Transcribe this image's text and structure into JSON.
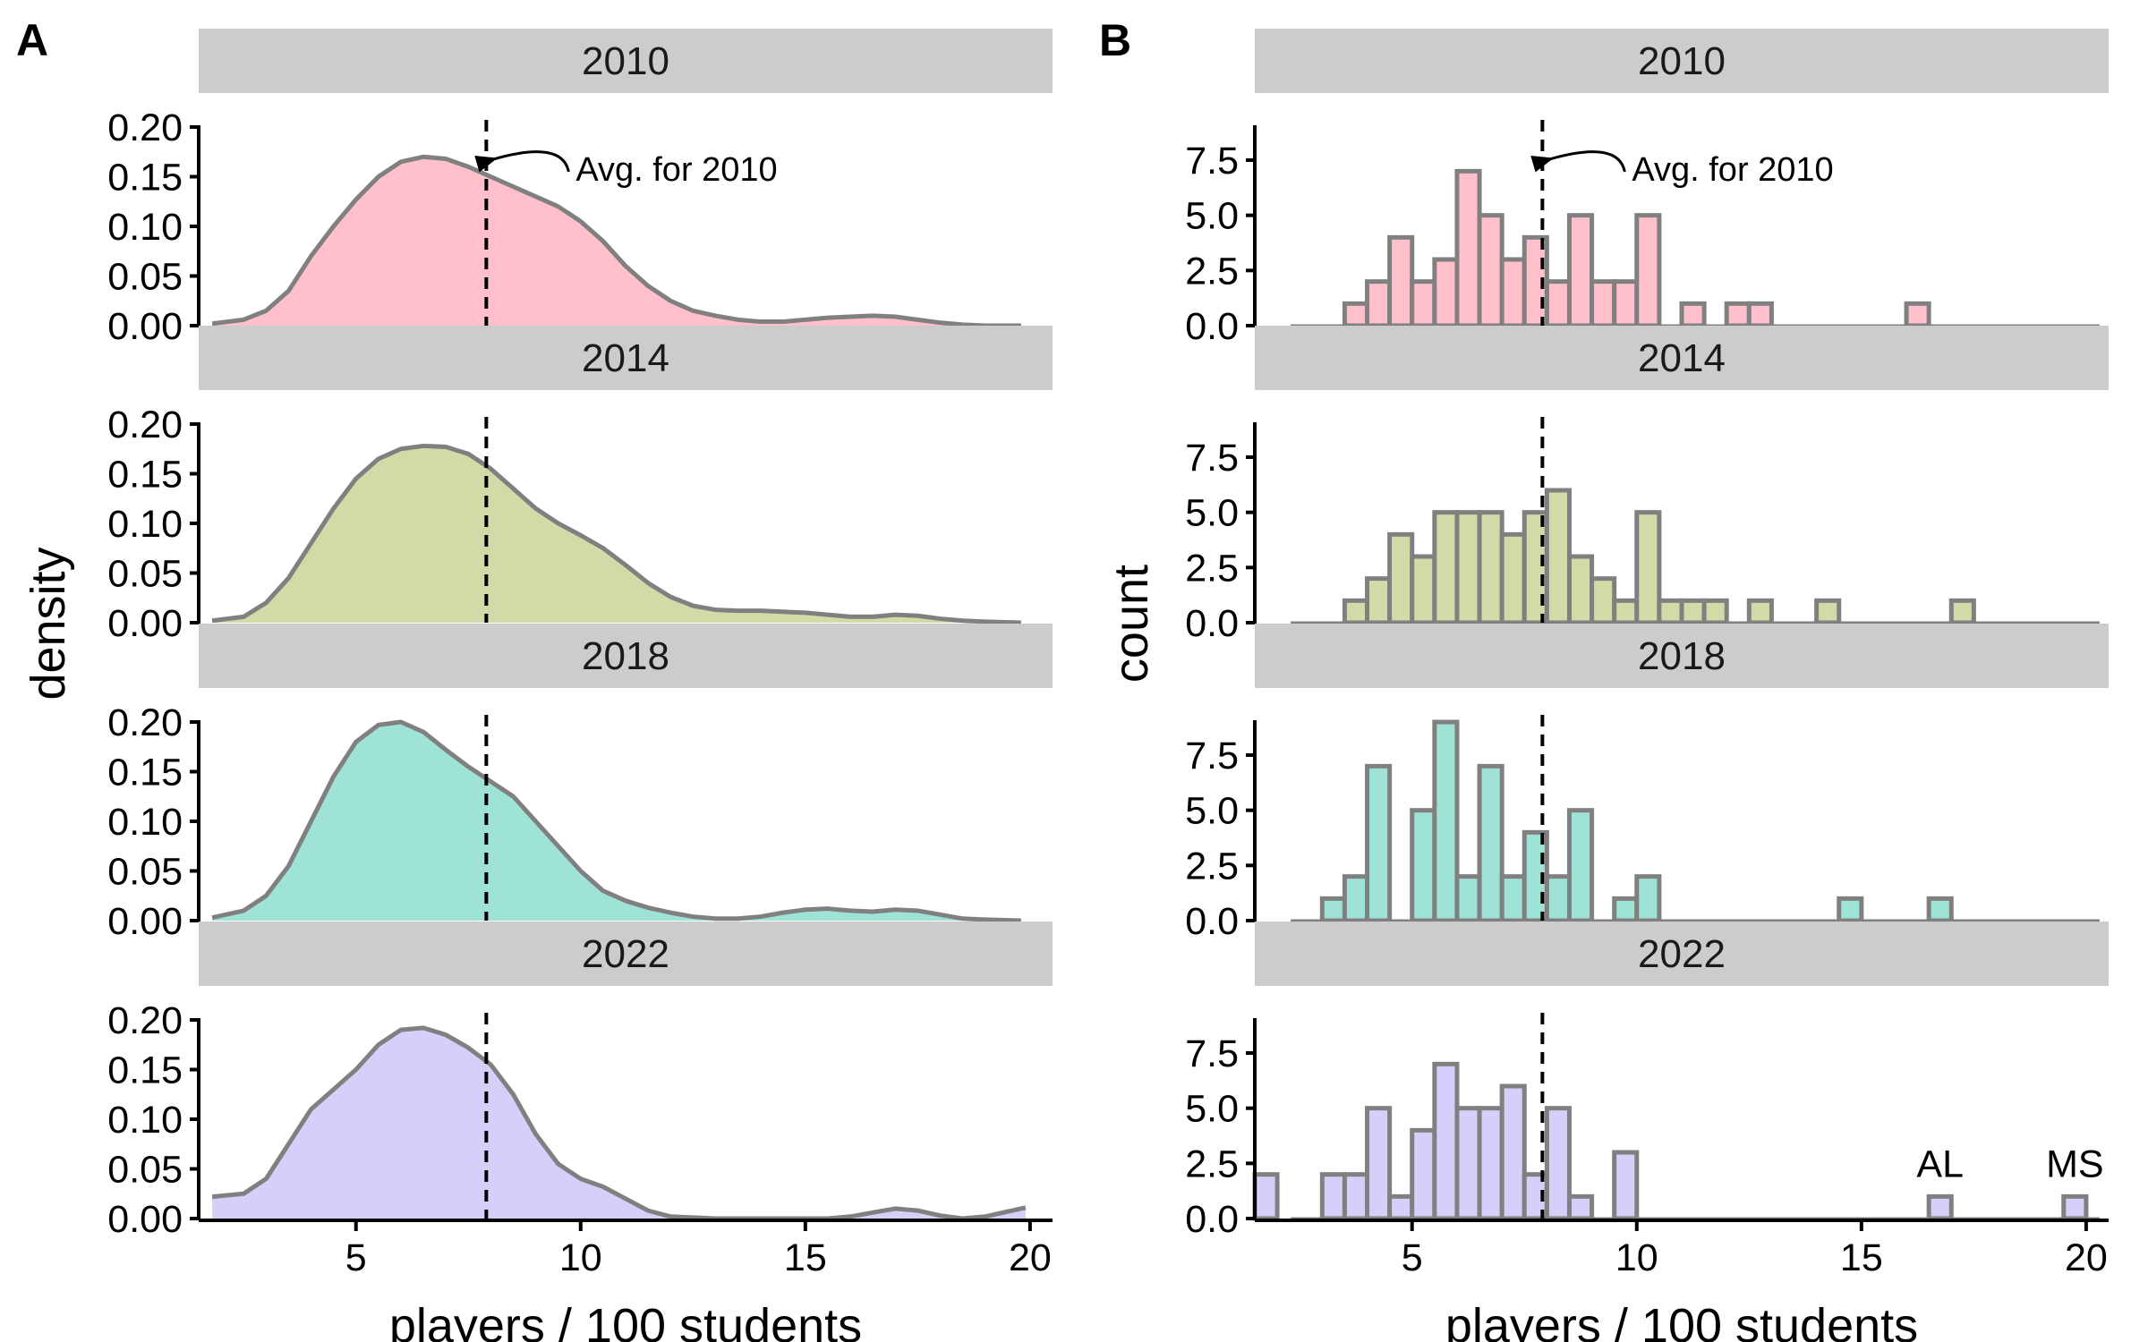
{
  "chart_data": [
    {
      "panel_tag": "A",
      "type": "area",
      "xlabel": "players / 100 students",
      "ylabel": "density",
      "xlim": [
        1.5,
        20.5
      ],
      "ylim": [
        0,
        0.2
      ],
      "x_ticks": [
        "5",
        "10",
        "15",
        "20"
      ],
      "y_ticks": [
        "0.00",
        "0.05",
        "0.10",
        "0.15",
        "0.20"
      ],
      "reference_x": 7.9,
      "annotation": {
        "year": "2010",
        "text": "Avg. for 2010"
      },
      "colors": {
        "2010": "#ffc0cb",
        "2014": "#d4d9a8",
        "2018": "#9ee3d6",
        "2022": "#d4d0fa",
        "outline": "#808080"
      },
      "facets": [
        {
          "label": "2010",
          "x": [
            1.8,
            2.5,
            3,
            3.5,
            4,
            4.5,
            5,
            5.5,
            6,
            6.5,
            7,
            7.5,
            8,
            8.5,
            9,
            9.5,
            10,
            10.5,
            11,
            11.5,
            12,
            12.5,
            13,
            13.5,
            14,
            14.5,
            15,
            15.5,
            16,
            16.5,
            17,
            17.5,
            18,
            18.5,
            19,
            19.8
          ],
          "y": [
            0.002,
            0.006,
            0.015,
            0.035,
            0.07,
            0.1,
            0.127,
            0.15,
            0.165,
            0.17,
            0.168,
            0.16,
            0.15,
            0.14,
            0.13,
            0.12,
            0.105,
            0.085,
            0.06,
            0.04,
            0.025,
            0.015,
            0.01,
            0.006,
            0.004,
            0.004,
            0.006,
            0.008,
            0.009,
            0.01,
            0.009,
            0.006,
            0.003,
            0.001,
            0.0,
            0.0
          ]
        },
        {
          "label": "2014",
          "x": [
            1.8,
            2.5,
            3,
            3.5,
            4,
            4.5,
            5,
            5.5,
            6,
            6.5,
            7,
            7.5,
            8,
            8.5,
            9,
            9.5,
            10,
            10.5,
            11,
            11.5,
            12,
            12.5,
            13,
            13.5,
            14,
            14.5,
            15,
            15.5,
            16,
            16.5,
            17,
            17.5,
            18,
            18.5,
            19,
            19.8
          ],
          "y": [
            0.002,
            0.006,
            0.02,
            0.045,
            0.08,
            0.115,
            0.145,
            0.165,
            0.175,
            0.178,
            0.177,
            0.17,
            0.155,
            0.135,
            0.115,
            0.1,
            0.088,
            0.075,
            0.058,
            0.04,
            0.026,
            0.017,
            0.013,
            0.012,
            0.012,
            0.011,
            0.01,
            0.008,
            0.006,
            0.006,
            0.008,
            0.007,
            0.004,
            0.002,
            0.001,
            0.0
          ]
        },
        {
          "label": "2018",
          "x": [
            1.8,
            2.5,
            3,
            3.5,
            4,
            4.5,
            5,
            5.5,
            6,
            6.5,
            7,
            7.5,
            8,
            8.5,
            9,
            9.5,
            10,
            10.5,
            11,
            11.5,
            12,
            12.5,
            13,
            13.5,
            14,
            14.5,
            15,
            15.5,
            16,
            16.5,
            17,
            17.5,
            18,
            18.5,
            19,
            19.8
          ],
          "y": [
            0.003,
            0.01,
            0.025,
            0.055,
            0.1,
            0.145,
            0.18,
            0.197,
            0.2,
            0.19,
            0.172,
            0.155,
            0.14,
            0.125,
            0.1,
            0.075,
            0.05,
            0.03,
            0.02,
            0.013,
            0.008,
            0.004,
            0.002,
            0.002,
            0.004,
            0.008,
            0.011,
            0.012,
            0.01,
            0.009,
            0.011,
            0.01,
            0.006,
            0.002,
            0.001,
            0.0
          ]
        },
        {
          "label": "2022",
          "x": [
            1.8,
            2.5,
            3,
            3.5,
            4,
            4.5,
            5,
            5.5,
            6,
            6.5,
            7,
            7.5,
            8,
            8.5,
            9,
            9.5,
            10,
            10.5,
            11,
            11.5,
            12,
            12.5,
            13,
            13.5,
            14,
            14.5,
            15,
            15.5,
            16,
            16.5,
            17,
            17.5,
            18,
            18.5,
            19,
            19.5,
            19.9
          ],
          "y": [
            0.022,
            0.025,
            0.04,
            0.075,
            0.11,
            0.13,
            0.15,
            0.175,
            0.19,
            0.192,
            0.185,
            0.172,
            0.155,
            0.125,
            0.085,
            0.055,
            0.04,
            0.032,
            0.02,
            0.008,
            0.002,
            0.001,
            0.0,
            0.0,
            0.0,
            0.0,
            0.0,
            0.0,
            0.002,
            0.006,
            0.01,
            0.008,
            0.003,
            0.0,
            0.002,
            0.007,
            0.011
          ]
        }
      ]
    },
    {
      "panel_tag": "B",
      "type": "bar",
      "xlabel": "players / 100 students",
      "ylabel": "count",
      "xlim": [
        1.5,
        20.5
      ],
      "ylim": [
        0,
        9
      ],
      "bin_width": 0.5,
      "x_ticks": [
        "5",
        "10",
        "15",
        "20"
      ],
      "y_ticks": [
        "0.0",
        "2.5",
        "5.0",
        "7.5"
      ],
      "reference_x": 7.9,
      "annotation": {
        "year": "2010",
        "text": "Avg. for 2010"
      },
      "baseline_range": [
        2.3,
        20.3
      ],
      "colors": {
        "2010": "#ffc0cb",
        "2014": "#d4d9a8",
        "2018": "#9ee3d6",
        "2022": "#d4d0fa",
        "outline": "#808080"
      },
      "facets": [
        {
          "label": "2010",
          "bins": [
            [
              3.75,
              1
            ],
            [
              4.25,
              2
            ],
            [
              4.75,
              4
            ],
            [
              5.25,
              2
            ],
            [
              5.75,
              3
            ],
            [
              6.25,
              7
            ],
            [
              6.75,
              5
            ],
            [
              7.25,
              3
            ],
            [
              7.75,
              4
            ],
            [
              8.25,
              2
            ],
            [
              8.75,
              5
            ],
            [
              9.25,
              2
            ],
            [
              9.75,
              2
            ],
            [
              10.25,
              5
            ],
            [
              11.25,
              1
            ],
            [
              12.25,
              1
            ],
            [
              12.75,
              1
            ],
            [
              16.25,
              1
            ]
          ]
        },
        {
          "label": "2014",
          "bins": [
            [
              3.75,
              1
            ],
            [
              4.25,
              2
            ],
            [
              4.75,
              4
            ],
            [
              5.25,
              3
            ],
            [
              5.75,
              5
            ],
            [
              6.25,
              5
            ],
            [
              6.75,
              5
            ],
            [
              7.25,
              4
            ],
            [
              7.75,
              5
            ],
            [
              8.25,
              6
            ],
            [
              8.75,
              3
            ],
            [
              9.25,
              2
            ],
            [
              9.75,
              1
            ],
            [
              10.25,
              5
            ],
            [
              10.75,
              1
            ],
            [
              11.25,
              1
            ],
            [
              11.75,
              1
            ],
            [
              12.75,
              1
            ],
            [
              14.25,
              1
            ],
            [
              17.25,
              1
            ]
          ]
        },
        {
          "label": "2018",
          "bins": [
            [
              3.25,
              1
            ],
            [
              3.75,
              2
            ],
            [
              4.25,
              7
            ],
            [
              5.25,
              5
            ],
            [
              5.75,
              9
            ],
            [
              6.25,
              2
            ],
            [
              6.75,
              7
            ],
            [
              7.25,
              2
            ],
            [
              7.75,
              4
            ],
            [
              8.25,
              2
            ],
            [
              8.75,
              5
            ],
            [
              9.75,
              1
            ],
            [
              10.25,
              2
            ],
            [
              14.75,
              1
            ],
            [
              16.75,
              1
            ]
          ]
        },
        {
          "label": "2022",
          "bins": [
            [
              1.75,
              2
            ],
            [
              3.25,
              2
            ],
            [
              3.75,
              2
            ],
            [
              4.25,
              5
            ],
            [
              4.75,
              1
            ],
            [
              5.25,
              4
            ],
            [
              5.75,
              7
            ],
            [
              6.25,
              5
            ],
            [
              6.75,
              5
            ],
            [
              7.25,
              6
            ],
            [
              7.75,
              2
            ],
            [
              8.25,
              5
            ],
            [
              8.75,
              1
            ],
            [
              9.75,
              3
            ],
            [
              16.75,
              1
            ],
            [
              19.75,
              1
            ]
          ],
          "bar_labels": [
            {
              "x": 16.75,
              "count": 1,
              "text": "AL"
            },
            {
              "x": 19.75,
              "count": 1,
              "text": "MS"
            }
          ]
        }
      ]
    }
  ]
}
